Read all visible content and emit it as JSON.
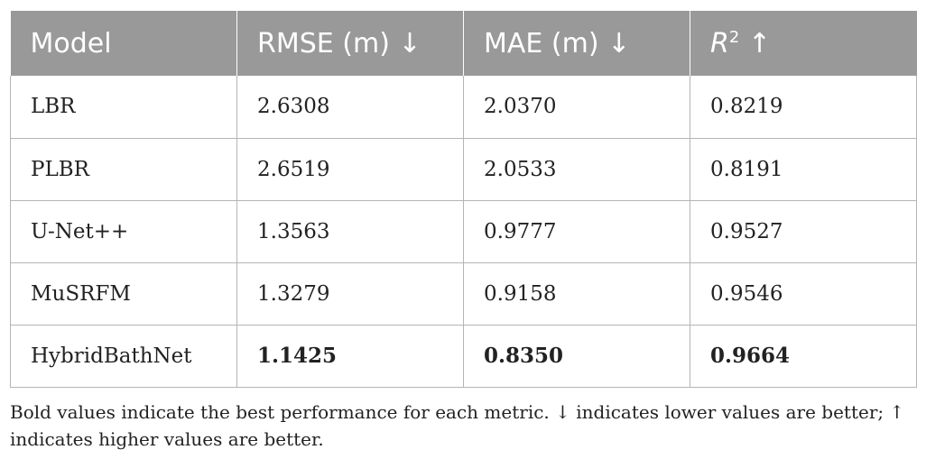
{
  "table": {
    "headers": {
      "model": "Model",
      "rmse": "RMSE (m) ↓",
      "mae": "MAE (m) ↓",
      "r2_base": "R",
      "r2_sup": "2",
      "r2_arrow": " ↑"
    },
    "rows": [
      {
        "model": "LBR",
        "rmse": "2.6308",
        "mae": "2.0370",
        "r2": "0.8219"
      },
      {
        "model": "PLBR",
        "rmse": "2.6519",
        "mae": "2.0533",
        "r2": "0.8191"
      },
      {
        "model": "U-Net++",
        "rmse": "1.3563",
        "mae": "0.9777",
        "r2": "0.9527"
      },
      {
        "model": "MuSRFM",
        "rmse": "1.3279",
        "mae": "0.9158",
        "r2": "0.9546"
      },
      {
        "model": "HybridBathNet",
        "rmse": "1.1425",
        "mae": "0.8350",
        "r2": "0.9664"
      }
    ]
  },
  "footnote": "Bold values indicate the best performance for each metric. ↓ indicates lower values are better; ↑ indicates higher values are better."
}
